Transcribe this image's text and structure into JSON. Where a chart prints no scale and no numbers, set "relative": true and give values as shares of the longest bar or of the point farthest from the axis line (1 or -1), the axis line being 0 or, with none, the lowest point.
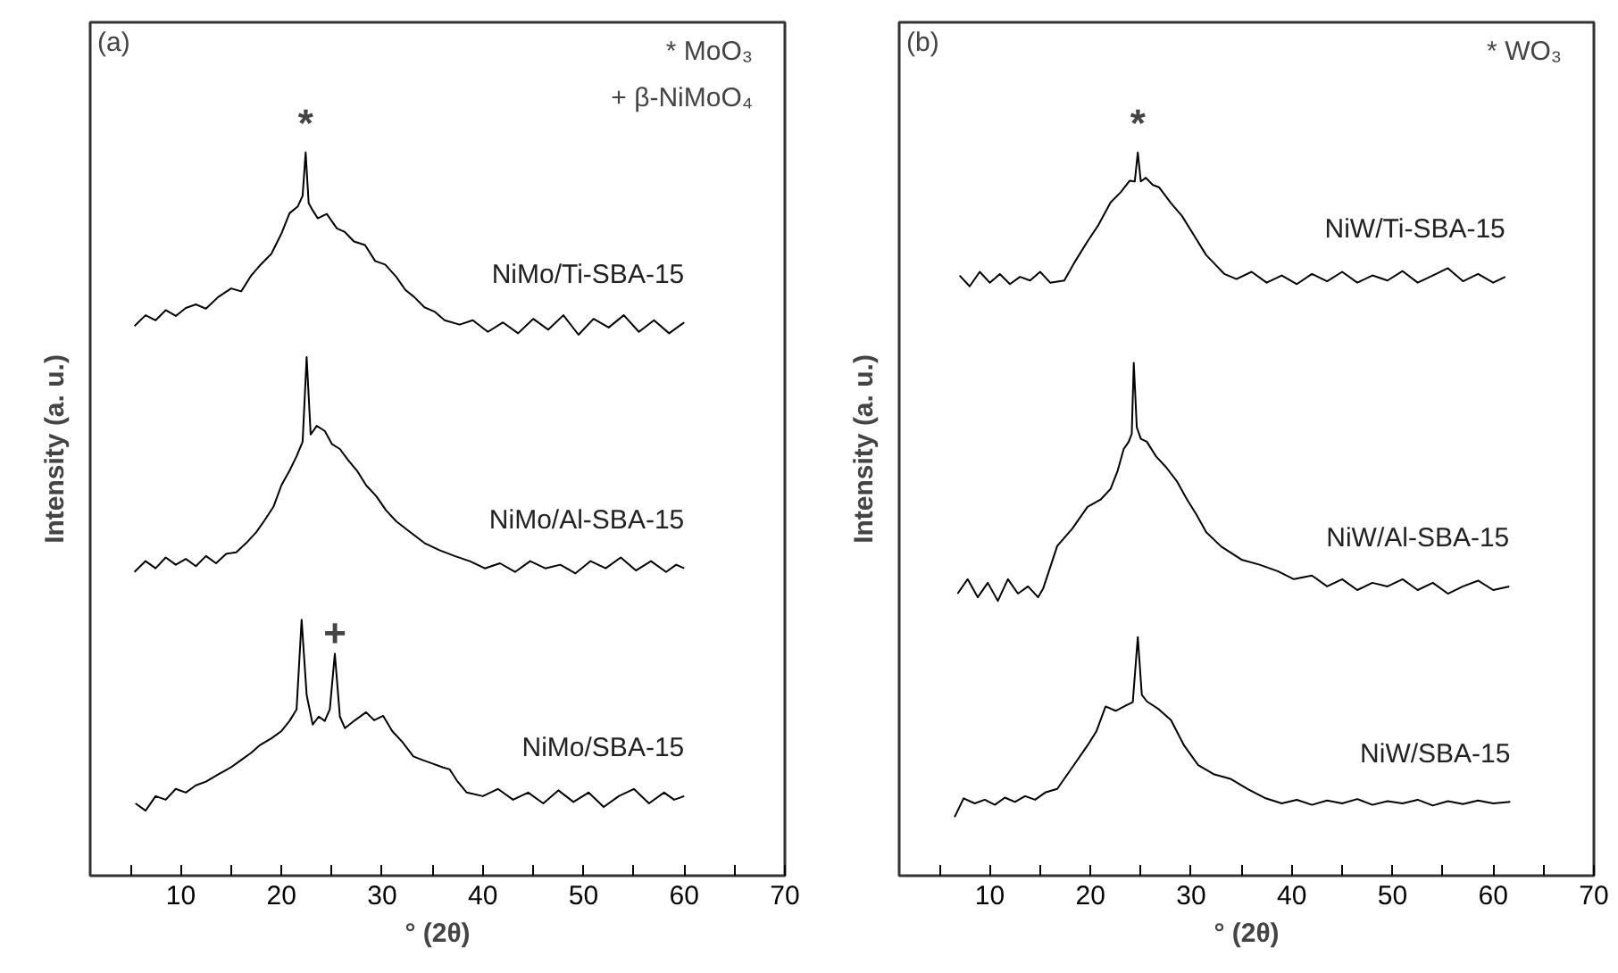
{
  "chart_data": [
    {
      "type": "line",
      "title": "(a)",
      "xlabel": "° (2θ)",
      "ylabel": "Intensity (a. u.)",
      "relative": true,
      "xlim": [
        1,
        70
      ],
      "xticks": [
        {
          "value": 5,
          "label": null
        },
        10,
        {
          "value": 15,
          "label": null
        },
        20,
        {
          "value": 25,
          "label": null
        },
        30,
        {
          "value": 35,
          "label": null
        },
        40,
        {
          "value": 45,
          "label": null
        },
        50,
        {
          "value": 55,
          "label": null
        },
        60,
        {
          "value": 65,
          "label": null
        },
        70
      ],
      "annotations": [
        "* MoO₃",
        "+ β-NiMoO₄",
        {
          "text": "*",
          "x": 22.4,
          "y": 1.0
        },
        {
          "text": "+",
          "x": 25.3,
          "y": 0.307
        }
      ],
      "series": [
        {
          "name": "NiMo/Ti-SBA-15",
          "color": "#000000",
          "x": [
            5.4,
            6.5,
            7.5,
            8.5,
            9.5,
            10.5,
            11.5,
            12.5,
            13.7,
            15,
            16,
            17,
            17.8,
            19,
            20,
            20.8,
            21.6,
            22.1,
            22.4,
            22.7,
            23.1,
            23.6,
            24.5,
            25.5,
            26.3,
            27.2,
            28.3,
            29.3,
            30.3,
            31.4,
            32.3,
            33.2,
            34.2,
            35.2,
            36.2,
            37.7,
            39,
            40.5,
            42,
            43.5,
            45,
            46.5,
            48,
            49.5,
            51,
            52.5,
            54,
            55.5,
            57,
            58.5,
            60
          ],
          "values": [
            0.76,
            0.775,
            0.768,
            0.782,
            0.774,
            0.785,
            0.79,
            0.784,
            0.8,
            0.812,
            0.808,
            0.83,
            0.843,
            0.86,
            0.888,
            0.916,
            0.925,
            0.94,
            1.0,
            0.93,
            0.92,
            0.909,
            0.915,
            0.895,
            0.89,
            0.877,
            0.872,
            0.85,
            0.845,
            0.828,
            0.81,
            0.8,
            0.786,
            0.78,
            0.768,
            0.762,
            0.768,
            0.752,
            0.765,
            0.75,
            0.77,
            0.755,
            0.775,
            0.748,
            0.77,
            0.758,
            0.775,
            0.752,
            0.768,
            0.75,
            0.765
          ]
        },
        {
          "name": "NiMo/Al-SBA-15",
          "color": "#000000",
          "x": [
            5.4,
            6.5,
            7.5,
            8.5,
            9.5,
            10.5,
            11.5,
            12.5,
            13.5,
            14.5,
            15.5,
            16.5,
            17.5,
            18.3,
            19.2,
            20,
            20.8,
            21.5,
            22.1,
            22.5,
            22.9,
            23.5,
            24.3,
            25,
            25.8,
            26.6,
            27.5,
            28.4,
            29.4,
            30.4,
            31.4,
            32.8,
            34.2,
            35.7,
            37.2,
            38.7,
            40.2,
            41.7,
            43.2,
            44.7,
            46.2,
            47.7,
            49.2,
            50.7,
            52.2,
            53.7,
            55.2,
            56.7,
            58.2,
            59.2,
            60
          ],
          "values": [
            0.42,
            0.435,
            0.425,
            0.44,
            0.43,
            0.438,
            0.428,
            0.442,
            0.432,
            0.445,
            0.447,
            0.46,
            0.475,
            0.491,
            0.51,
            0.54,
            0.56,
            0.58,
            0.6,
            0.717,
            0.61,
            0.622,
            0.615,
            0.597,
            0.59,
            0.575,
            0.56,
            0.54,
            0.525,
            0.505,
            0.49,
            0.475,
            0.46,
            0.45,
            0.442,
            0.435,
            0.425,
            0.432,
            0.42,
            0.435,
            0.425,
            0.43,
            0.418,
            0.435,
            0.425,
            0.44,
            0.422,
            0.435,
            0.42,
            0.43,
            0.425
          ]
        },
        {
          "name": "NiMo/SBA-15",
          "color": "#000000",
          "x": [
            5.5,
            6.5,
            7.5,
            8.5,
            9.5,
            10.5,
            11.5,
            12.5,
            13.7,
            15,
            16,
            17,
            17.8,
            19,
            20,
            20.8,
            21.5,
            22,
            22.5,
            23.1,
            23.7,
            24.3,
            24.8,
            25.3,
            25.8,
            26.3,
            27.3,
            28.4,
            29.2,
            30.1,
            31,
            32,
            33.1,
            34,
            35,
            36,
            36.7,
            37.5,
            38.4,
            40,
            41.5,
            43,
            44.5,
            46,
            47.5,
            49,
            50.5,
            52,
            53.5,
            55,
            56.5,
            58,
            59,
            60
          ],
          "values": [
            0.1,
            0.09,
            0.11,
            0.105,
            0.12,
            0.115,
            0.125,
            0.13,
            0.14,
            0.15,
            0.16,
            0.17,
            0.18,
            0.19,
            0.2,
            0.214,
            0.23,
            0.354,
            0.25,
            0.209,
            0.22,
            0.214,
            0.23,
            0.307,
            0.22,
            0.204,
            0.215,
            0.226,
            0.215,
            0.221,
            0.2,
            0.185,
            0.165,
            0.16,
            0.155,
            0.15,
            0.147,
            0.13,
            0.115,
            0.11,
            0.12,
            0.105,
            0.115,
            0.1,
            0.118,
            0.102,
            0.115,
            0.095,
            0.11,
            0.12,
            0.1,
            0.115,
            0.105,
            0.11
          ]
        }
      ]
    },
    {
      "type": "line",
      "title": "(b)",
      "xlabel": "° (2θ)",
      "ylabel": "Intensity (a. u.)",
      "relative": true,
      "xlim": [
        1,
        70
      ],
      "xticks": [
        {
          "value": 5,
          "label": null
        },
        10,
        {
          "value": 15,
          "label": null
        },
        20,
        {
          "value": 25,
          "label": null
        },
        30,
        {
          "value": 35,
          "label": null
        },
        40,
        {
          "value": 45,
          "label": null
        },
        50,
        {
          "value": 55,
          "label": null
        },
        60,
        {
          "value": 65,
          "label": null
        },
        70
      ],
      "annotations": [
        "* WO₃",
        {
          "text": "*",
          "x": 24.7,
          "y": 1.0
        }
      ],
      "series": [
        {
          "name": "NiW/Ti-SBA-15",
          "color": "#000000",
          "x": [
            7,
            8,
            9,
            10,
            11,
            12,
            13,
            14,
            15,
            16,
            17.4,
            18.5,
            19.7,
            20.8,
            22,
            23,
            23.9,
            24.4,
            24.7,
            25,
            25.5,
            26.2,
            26.8,
            28,
            29.1,
            30.3,
            31.5,
            32.4,
            33.3,
            34.5,
            36,
            37.5,
            39,
            40.5,
            42,
            43.5,
            45,
            46.5,
            48,
            49.5,
            51,
            52.5,
            54,
            55.5,
            57,
            58.5,
            60,
            61.2
          ],
          "values": [
            0.83,
            0.815,
            0.835,
            0.82,
            0.832,
            0.818,
            0.828,
            0.823,
            0.835,
            0.82,
            0.823,
            0.85,
            0.877,
            0.9,
            0.931,
            0.945,
            0.961,
            0.96,
            1.0,
            0.96,
            0.965,
            0.955,
            0.952,
            0.93,
            0.912,
            0.885,
            0.858,
            0.845,
            0.832,
            0.825,
            0.835,
            0.82,
            0.83,
            0.818,
            0.832,
            0.822,
            0.835,
            0.82,
            0.83,
            0.823,
            0.836,
            0.82,
            0.83,
            0.84,
            0.822,
            0.832,
            0.82,
            0.828
          ]
        },
        {
          "name": "NiW/Al-SBA-15",
          "color": "#000000",
          "x": [
            6.8,
            7.8,
            8.8,
            9.8,
            10.8,
            11.8,
            12.8,
            13.8,
            14.8,
            15.3,
            16.7,
            18.2,
            19.7,
            21,
            22,
            22.7,
            23.3,
            23.8,
            24.1,
            24.3,
            24.6,
            25,
            25.6,
            26.5,
            27.5,
            28.6,
            29.6,
            30.5,
            31.5,
            33,
            35,
            36.8,
            38.6,
            40.2,
            42,
            43.5,
            45,
            46.5,
            48,
            49.5,
            51,
            52.5,
            54,
            55.5,
            57,
            58.5,
            60,
            61.6
          ],
          "values": [
            0.39,
            0.41,
            0.385,
            0.405,
            0.38,
            0.41,
            0.39,
            0.4,
            0.385,
            0.397,
            0.456,
            0.48,
            0.51,
            0.52,
            0.535,
            0.56,
            0.59,
            0.6,
            0.611,
            0.709,
            0.62,
            0.604,
            0.6,
            0.58,
            0.565,
            0.545,
            0.52,
            0.5,
            0.475,
            0.455,
            0.437,
            0.43,
            0.421,
            0.41,
            0.415,
            0.4,
            0.41,
            0.395,
            0.405,
            0.4,
            0.41,
            0.395,
            0.405,
            0.39,
            0.4,
            0.408,
            0.395,
            0.4
          ]
        },
        {
          "name": "NiW/SBA-15",
          "color": "#000000",
          "x": [
            6.5,
            7.4,
            8.5,
            9.5,
            10.5,
            11.5,
            12.5,
            13.5,
            14.5,
            15.5,
            16.7,
            18.2,
            19.7,
            20.6,
            21.5,
            22.5,
            23.6,
            24.2,
            24.7,
            25.1,
            25.6,
            26.8,
            28,
            29.3,
            30.7,
            32.3,
            33.9,
            35.6,
            37.4,
            39,
            40.5,
            42,
            43.5,
            45,
            46.5,
            48,
            49.5,
            51,
            52.5,
            54,
            55.5,
            57,
            58.5,
            60,
            61.7
          ],
          "values": [
            0.081,
            0.107,
            0.1,
            0.105,
            0.098,
            0.108,
            0.102,
            0.11,
            0.105,
            0.115,
            0.12,
            0.15,
            0.18,
            0.2,
            0.234,
            0.228,
            0.236,
            0.24,
            0.33,
            0.25,
            0.241,
            0.23,
            0.215,
            0.18,
            0.153,
            0.14,
            0.134,
            0.12,
            0.107,
            0.1,
            0.105,
            0.098,
            0.104,
            0.1,
            0.106,
            0.098,
            0.103,
            0.1,
            0.105,
            0.097,
            0.103,
            0.099,
            0.104,
            0.1,
            0.102
          ]
        }
      ]
    }
  ]
}
